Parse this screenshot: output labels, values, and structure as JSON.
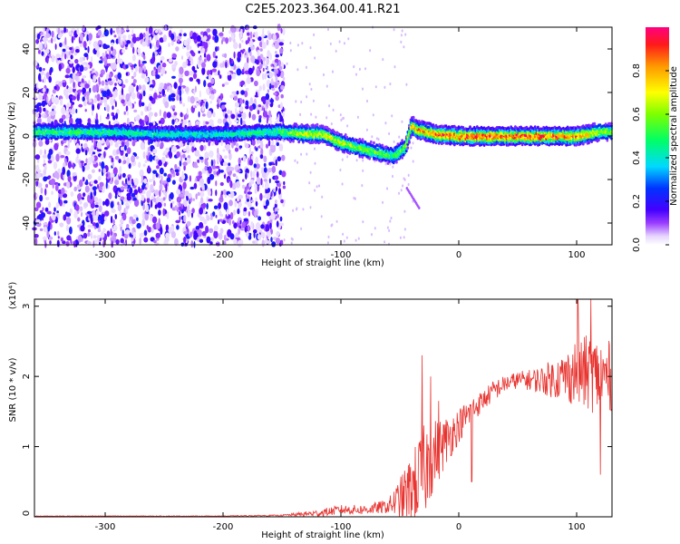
{
  "title": "C2E5.2023.364.00.41.R21",
  "chart_data": [
    {
      "type": "heatmap",
      "xlabel": "Height of straight line (km)",
      "ylabel": "Frequency (Hz)",
      "xlim": [
        -360,
        130
      ],
      "ylim": [
        -50,
        50
      ],
      "xticks": [
        -300,
        -200,
        -100,
        0,
        100
      ],
      "yticks": [
        -40,
        -20,
        0,
        20,
        40
      ],
      "colorbar": {
        "label": "Normalized spectral amplitude",
        "range": [
          0,
          1
        ],
        "ticks": [
          "0.0",
          "0.2",
          "0.4",
          "0.6",
          "0.8"
        ],
        "tick_values": [
          0.0,
          0.2,
          0.4,
          0.6,
          0.8
        ]
      },
      "ridge": {
        "x": [
          -355,
          -300,
          -250,
          -200,
          -160,
          -150,
          -130,
          -115,
          -100,
          -80,
          -65,
          -55,
          -45,
          -40,
          -35,
          -20,
          0,
          20,
          50,
          80,
          100,
          110,
          120,
          130
        ],
        "y": [
          2,
          2,
          1,
          1,
          2,
          2,
          1,
          1,
          -3,
          -6,
          -8,
          -9,
          -5,
          5,
          3,
          1,
          0,
          0,
          0,
          0,
          0,
          1,
          2,
          2
        ],
        "peak": [
          0.55,
          0.5,
          0.45,
          0.45,
          0.5,
          0.55,
          0.75,
          0.7,
          0.7,
          0.6,
          0.6,
          0.55,
          0.65,
          0.8,
          0.85,
          0.9,
          0.95,
          0.95,
          0.95,
          0.95,
          0.9,
          0.8,
          0.65,
          0.6
        ]
      },
      "noise_region_x": [
        -360,
        -148
      ]
    },
    {
      "type": "line",
      "xlabel": "Height of straight line (km)",
      "ylabel": "SNR (10 * v/v)",
      "scale_label": "(x10⁴)",
      "xlim": [
        -360,
        130
      ],
      "ylim": [
        0,
        3.1
      ],
      "xticks": [
        -300,
        -200,
        -100,
        0,
        100
      ],
      "yticks": [
        0,
        1,
        2,
        3
      ],
      "color": "#e8332f",
      "envelope": {
        "x": [
          -360,
          -300,
          -200,
          -150,
          -120,
          -100,
          -80,
          -60,
          -50,
          -40,
          -30,
          -25,
          -20,
          -10,
          0,
          10,
          20,
          30,
          40,
          50,
          60,
          70,
          80,
          90,
          100,
          110,
          120,
          130
        ],
        "y": [
          0.01,
          0.01,
          0.01,
          0.02,
          0.05,
          0.1,
          0.1,
          0.15,
          0.25,
          0.4,
          0.6,
          0.8,
          0.9,
          1.1,
          1.3,
          1.5,
          1.65,
          1.8,
          1.9,
          1.95,
          1.95,
          1.95,
          1.97,
          2.0,
          2.05,
          2.05,
          2.0,
          2.0
        ],
        "spread": [
          0.005,
          0.005,
          0.005,
          0.01,
          0.05,
          0.07,
          0.07,
          0.1,
          0.3,
          0.5,
          0.7,
          0.6,
          0.5,
          0.35,
          0.25,
          0.2,
          0.15,
          0.15,
          0.12,
          0.12,
          0.15,
          0.2,
          0.28,
          0.35,
          0.5,
          0.55,
          0.55,
          0.5
        ]
      },
      "spikes": [
        {
          "x": -31,
          "y": 2.3
        },
        {
          "x": -24,
          "y": 2.0
        },
        {
          "x": -17,
          "y": 1.65
        },
        {
          "x": 11,
          "y": 0.5
        },
        {
          "x": 101,
          "y": 3.1
        },
        {
          "x": 112,
          "y": 3.1
        },
        {
          "x": 120,
          "y": 0.6
        }
      ]
    }
  ]
}
